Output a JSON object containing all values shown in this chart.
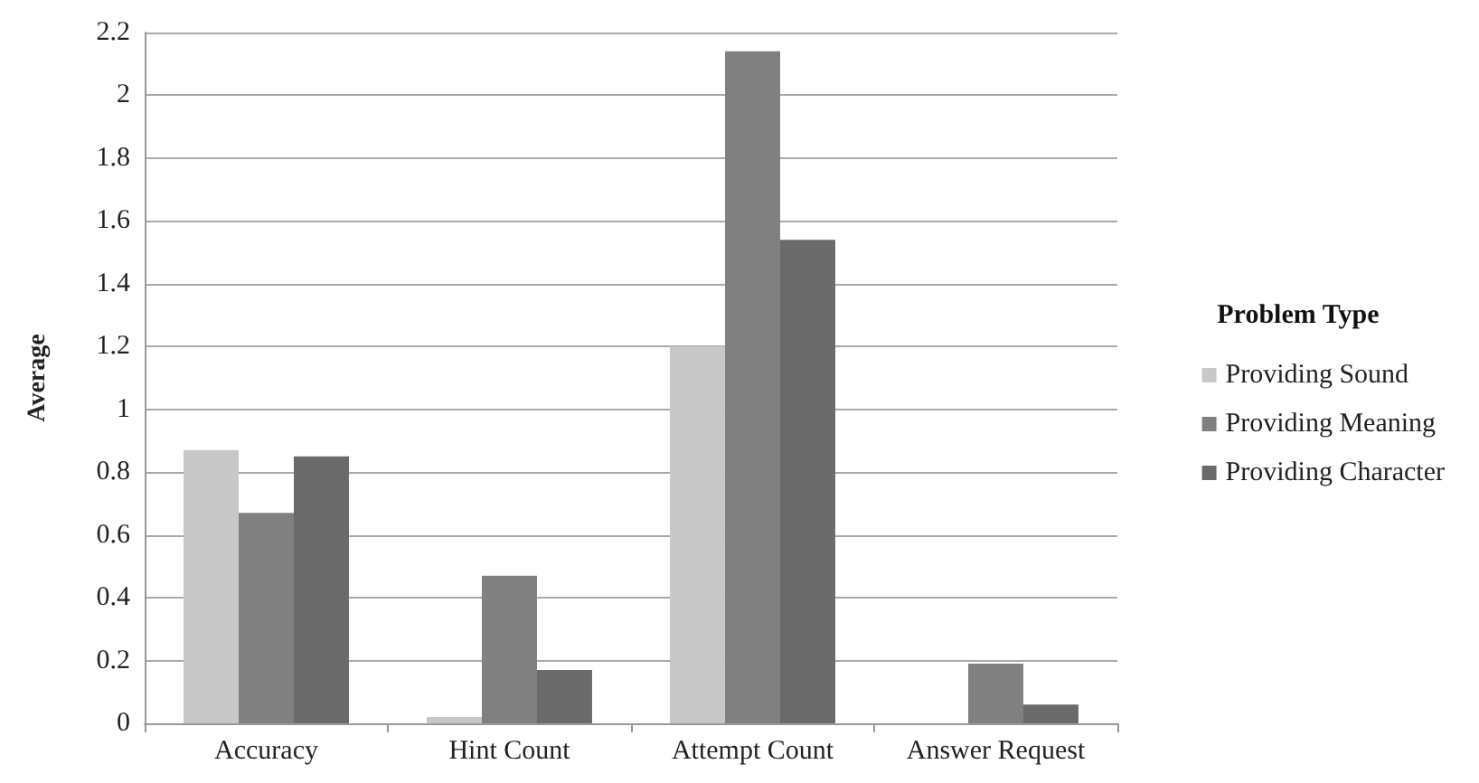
{
  "chart_data": {
    "type": "bar",
    "ylabel": "Average",
    "legend_title": "Problem Type",
    "categories": [
      "Accuracy",
      "Hint Count",
      "Attempt Count",
      "Answer Request"
    ],
    "series": [
      {
        "name": "Providing Sound",
        "color": "#c8c8c8",
        "values": [
          0.87,
          0.02,
          1.2,
          0
        ]
      },
      {
        "name": "Providing Meaning",
        "color": "#808080",
        "values": [
          0.67,
          0.47,
          2.14,
          0.19
        ]
      },
      {
        "name": "Providing Character",
        "color": "#6a6a6a",
        "values": [
          0.85,
          0.17,
          1.54,
          0.06
        ]
      }
    ],
    "ylim": [
      0,
      2.2
    ],
    "yticks": [
      0,
      0.2,
      0.4,
      0.6,
      0.8,
      1,
      1.2,
      1.4,
      1.6,
      1.8,
      2,
      2.2
    ],
    "grid": "y",
    "legend": "right"
  }
}
